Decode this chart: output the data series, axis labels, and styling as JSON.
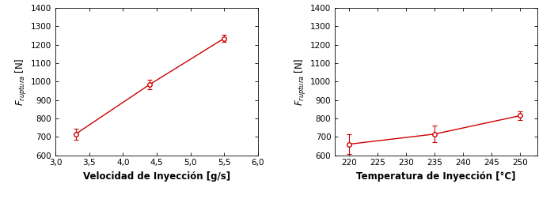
{
  "left": {
    "x": [
      3.3,
      4.4,
      5.5
    ],
    "y": [
      715,
      985,
      1235
    ],
    "yerr": [
      30,
      25,
      20
    ],
    "xlim": [
      3.0,
      6.0
    ],
    "ylim": [
      600,
      1400
    ],
    "xticks": [
      3.0,
      3.5,
      4.0,
      4.5,
      5.0,
      5.5,
      6.0
    ],
    "yticks": [
      600,
      700,
      800,
      900,
      1000,
      1100,
      1200,
      1300,
      1400
    ],
    "xlabel": "Velocidad de Inyección [g/s]",
    "ylabel": "$F_{ruptura}$ [N]"
  },
  "right": {
    "x": [
      220,
      235,
      250
    ],
    "y": [
      660,
      715,
      815
    ],
    "yerr": [
      55,
      45,
      25
    ],
    "xlim": [
      217.5,
      253
    ],
    "ylim": [
      600,
      1400
    ],
    "xticks": [
      220,
      225,
      230,
      235,
      240,
      245,
      250
    ],
    "yticks": [
      600,
      700,
      800,
      900,
      1000,
      1100,
      1200,
      1300,
      1400
    ],
    "xlabel": "Temperatura de Inyección [°C]",
    "ylabel": "$F_{ruptura}$ [N]"
  },
  "line_color": "#cc0000",
  "marker_color": "#cc0000",
  "marker_face": "white",
  "marker_size": 4,
  "marker_style": "o",
  "line_style": "-",
  "line_width": 1.0,
  "capsize": 2.5,
  "elinewidth": 0.8,
  "tick_label_size": 7.5,
  "axis_label_size": 8.5,
  "ylabel_size": 8.5
}
